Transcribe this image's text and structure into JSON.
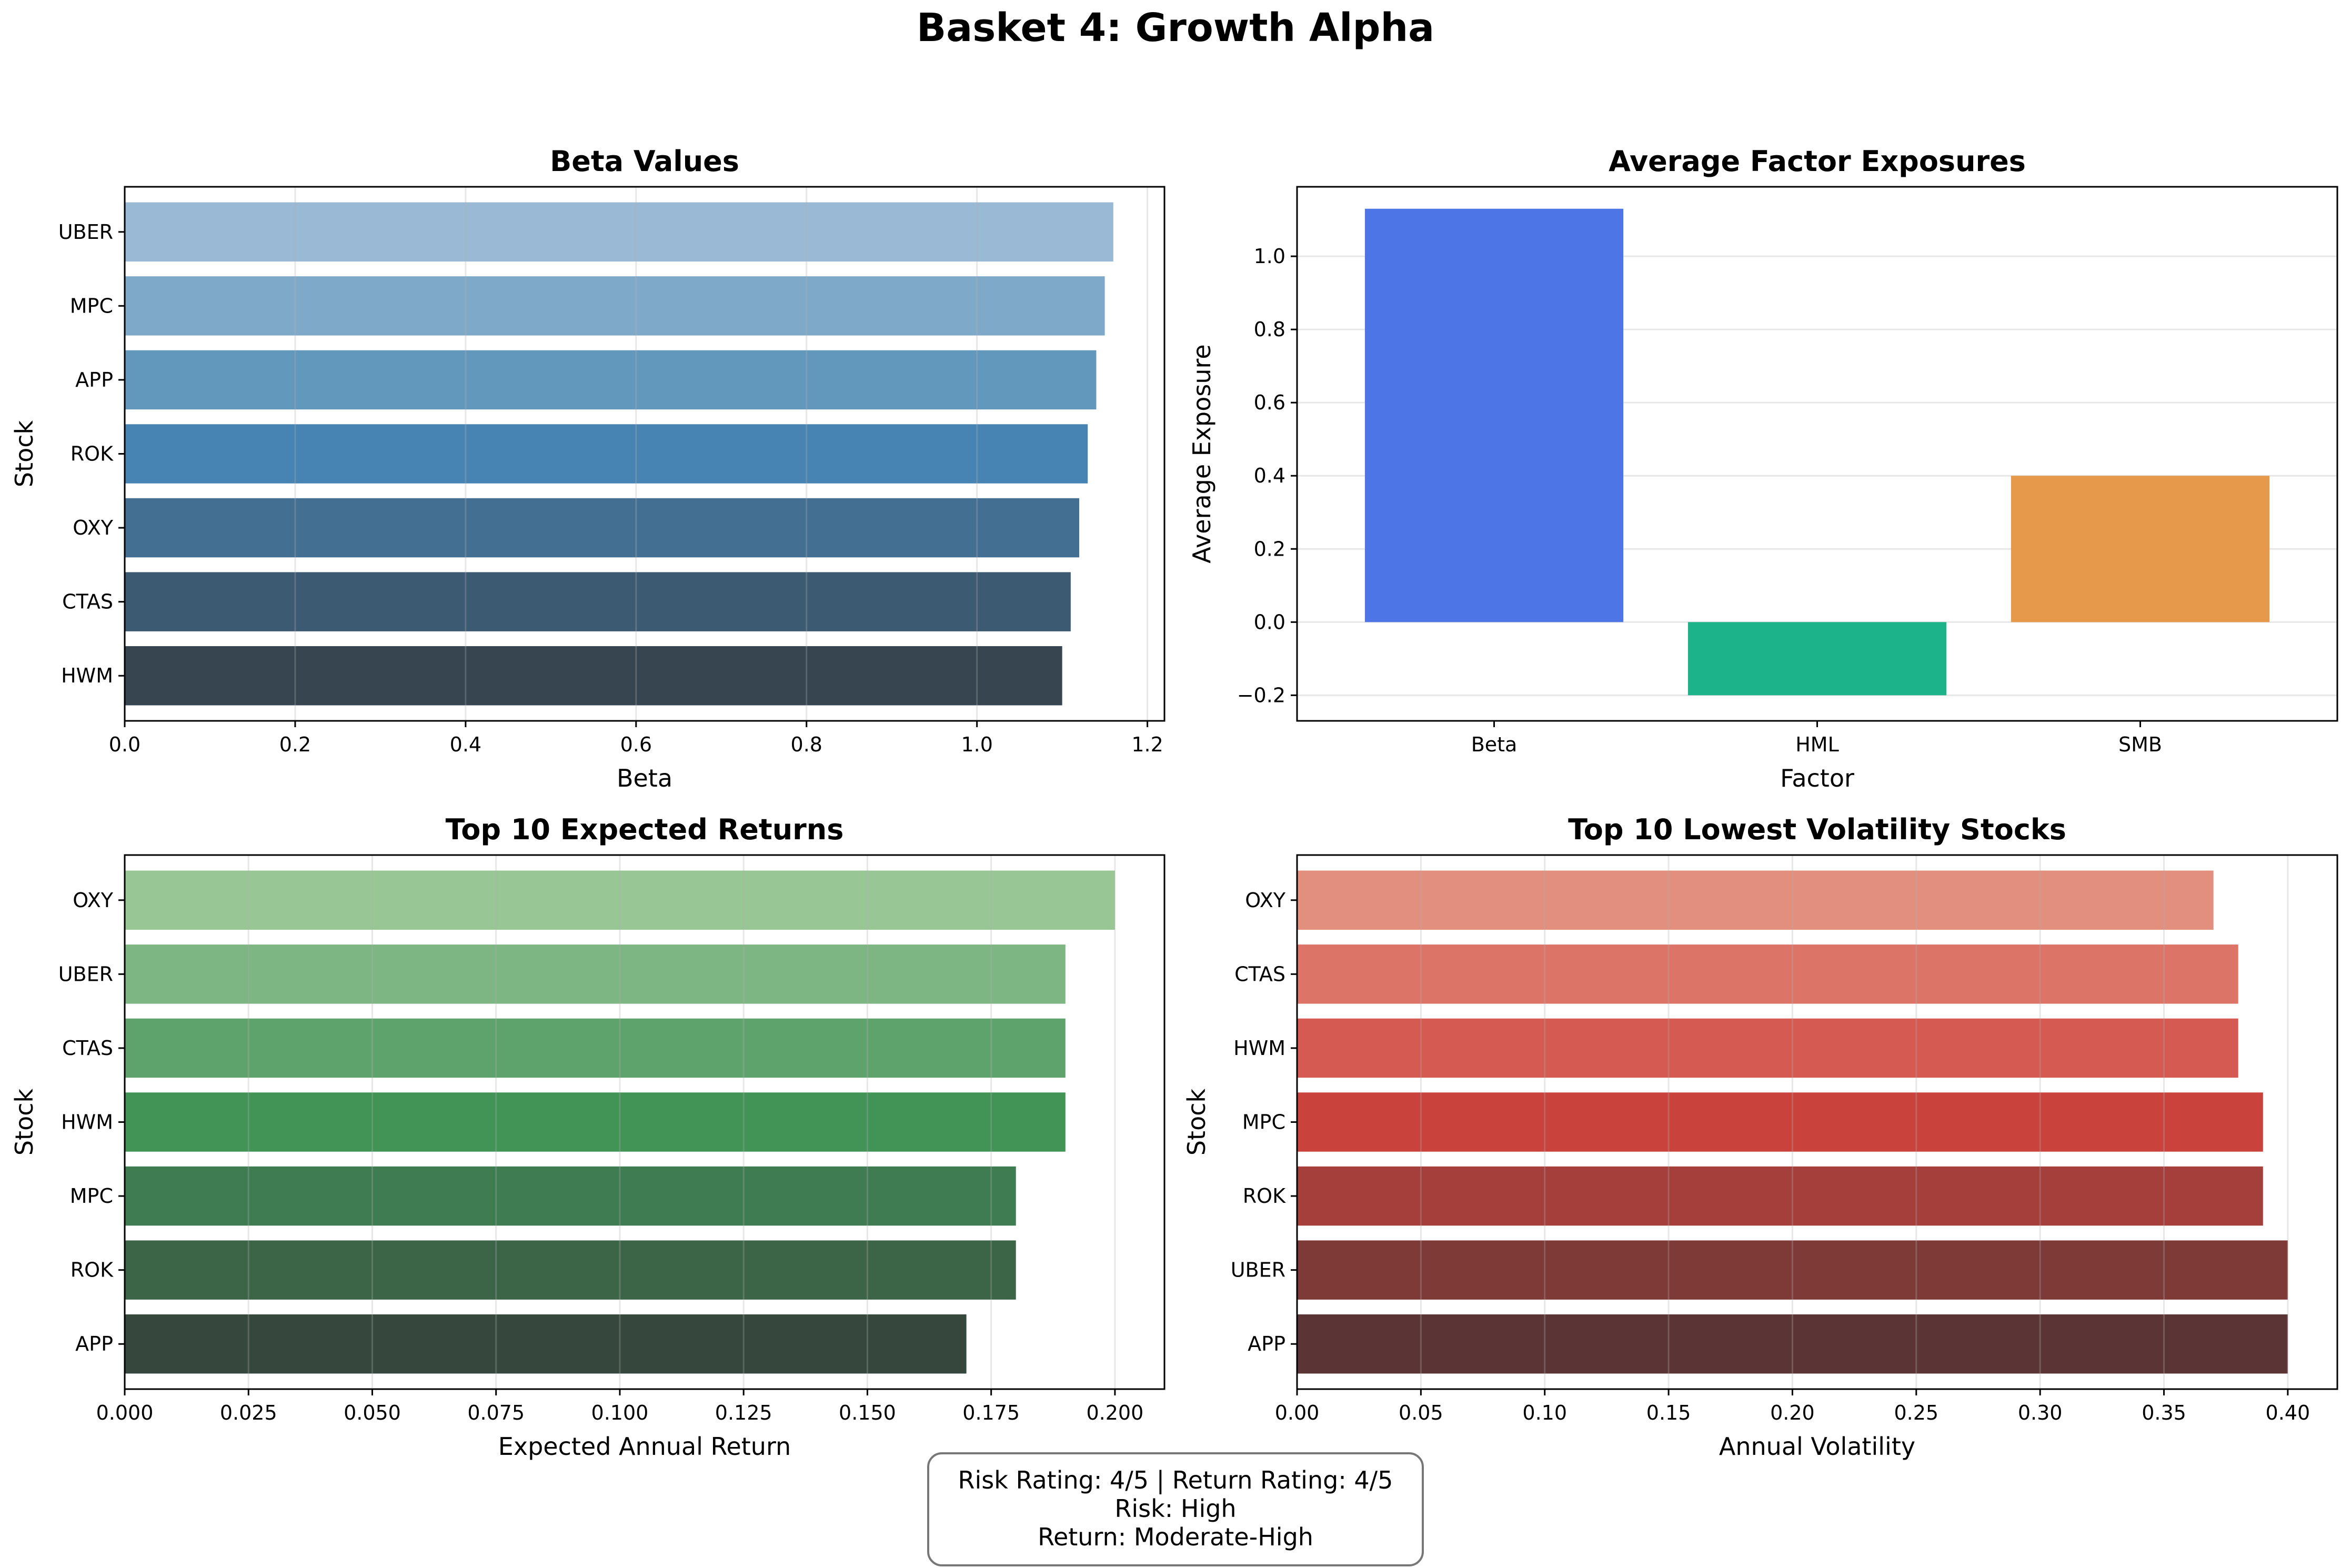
{
  "figure": {
    "suptitle": "Basket 4: Growth Alpha",
    "info_box": {
      "line1": "Risk Rating: 4/5 | Return Rating: 4/5",
      "line2": "Risk: High",
      "line3": "Return: Moderate-High"
    }
  },
  "chart_data": [
    {
      "id": "beta",
      "type": "bar",
      "orientation": "horizontal",
      "title": "Beta Values",
      "xlabel": "Beta",
      "ylabel": "Stock",
      "categories": [
        "UBER",
        "MPC",
        "APP",
        "ROK",
        "OXY",
        "CTAS",
        "HWM"
      ],
      "values": [
        1.16,
        1.15,
        1.14,
        1.13,
        1.12,
        1.11,
        1.1
      ],
      "colors": [
        "#9ab9d5",
        "#7fa9c9",
        "#6398bd",
        "#4784b3",
        "#436f93",
        "#3c5a72",
        "#36454f"
      ],
      "xlim": [
        0,
        1.22
      ],
      "xticks": [
        0.0,
        0.2,
        0.4,
        0.6,
        0.8,
        1.0,
        1.2
      ],
      "xtick_labels": [
        "0.0",
        "0.2",
        "0.4",
        "0.6",
        "0.8",
        "1.0",
        "1.2"
      ],
      "grid": "x"
    },
    {
      "id": "factor",
      "type": "bar",
      "orientation": "vertical",
      "title": "Average Factor Exposures",
      "xlabel": "Factor",
      "ylabel": "Average Exposure",
      "categories": [
        "Beta",
        "HML",
        "SMB"
      ],
      "values": [
        1.13,
        -0.2,
        0.4
      ],
      "colors": [
        "#4e75e6",
        "#1db38a",
        "#e6984b"
      ],
      "ylim": [
        -0.27,
        1.19
      ],
      "yticks": [
        -0.2,
        0.0,
        0.2,
        0.4,
        0.6,
        0.8,
        1.0
      ],
      "ytick_labels": [
        "−0.2",
        "0.0",
        "0.2",
        "0.4",
        "0.6",
        "0.8",
        "1.0"
      ],
      "grid": "y"
    },
    {
      "id": "returns",
      "type": "bar",
      "orientation": "horizontal",
      "title": "Top 10 Expected Returns",
      "xlabel": "Expected Annual Return",
      "ylabel": "Stock",
      "categories": [
        "OXY",
        "UBER",
        "CTAS",
        "HWM",
        "MPC",
        "ROK",
        "APP"
      ],
      "values": [
        0.2,
        0.19,
        0.19,
        0.19,
        0.18,
        0.18,
        0.17
      ],
      "colors": [
        "#98c795",
        "#7db583",
        "#5fa36c",
        "#419356",
        "#3f7c51",
        "#3c6548",
        "#36483d"
      ],
      "xlim": [
        0,
        0.21
      ],
      "xticks": [
        0.0,
        0.025,
        0.05,
        0.075,
        0.1,
        0.125,
        0.15,
        0.175,
        0.2
      ],
      "xtick_labels": [
        "0.000",
        "0.025",
        "0.050",
        "0.075",
        "0.100",
        "0.125",
        "0.150",
        "0.175",
        "0.200"
      ],
      "grid": "x"
    },
    {
      "id": "volatility",
      "type": "bar",
      "orientation": "horizontal",
      "title": "Top 10 Lowest Volatility Stocks",
      "xlabel": "Annual Volatility",
      "ylabel": "Stock",
      "categories": [
        "OXY",
        "CTAS",
        "HWM",
        "MPC",
        "ROK",
        "UBER",
        "APP"
      ],
      "values": [
        0.37,
        0.38,
        0.38,
        0.39,
        0.39,
        0.4,
        0.4
      ],
      "colors": [
        "#e38f7d",
        "#dd7468",
        "#d55a51",
        "#c9423b",
        "#a53f3c",
        "#7e3a37",
        "#5b3536"
      ],
      "xlim": [
        0,
        0.42
      ],
      "xticks": [
        0.0,
        0.05,
        0.1,
        0.15,
        0.2,
        0.25,
        0.3,
        0.35,
        0.4
      ],
      "xtick_labels": [
        "0.00",
        "0.05",
        "0.10",
        "0.15",
        "0.20",
        "0.25",
        "0.30",
        "0.35",
        "0.40"
      ],
      "grid": "x"
    }
  ]
}
